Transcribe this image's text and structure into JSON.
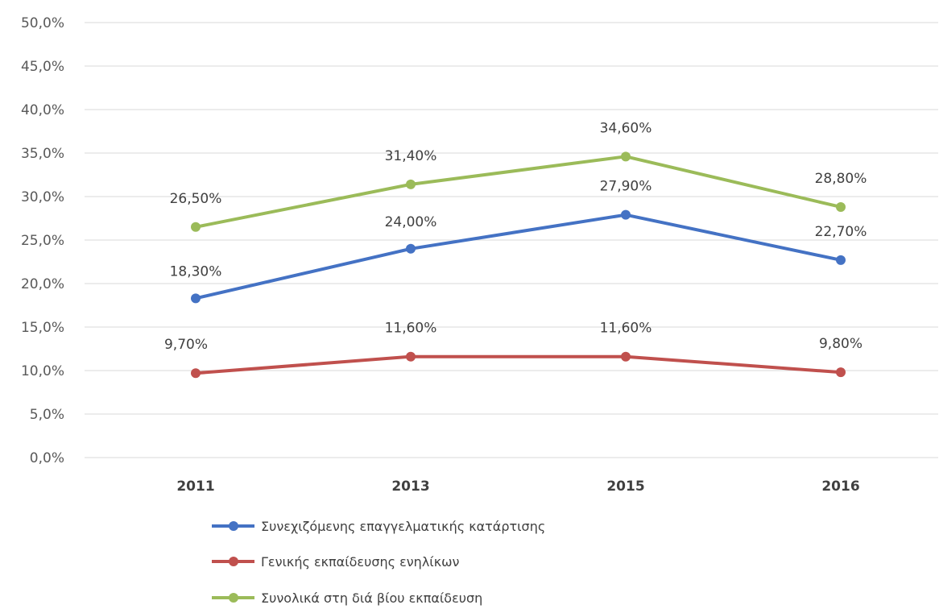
{
  "chart_data": {
    "type": "line",
    "categories": [
      "2011",
      "2013",
      "2015",
      "2016"
    ],
    "ylim": [
      0,
      50
    ],
    "ytick_step": 5,
    "ytick_labels": [
      "0,0%",
      "5,0%",
      "10,0%",
      "15,0%",
      "20,0%",
      "25,0%",
      "30,0%",
      "35,0%",
      "40,0%",
      "45,0%",
      "50,0%"
    ],
    "grid": true,
    "legend_position": "bottom",
    "series": [
      {
        "name": "Συνεχιζόμενης επαγγελματικής κατάρτισης",
        "values": [
          18.3,
          24.0,
          27.9,
          22.7
        ],
        "labels": [
          "18,30%",
          "24,00%",
          "27,90%",
          "22,70%"
        ],
        "color": "#4472c4"
      },
      {
        "name": "Γενικής εκπαίδευσης ενηλίκων",
        "values": [
          9.7,
          11.6,
          11.6,
          9.8
        ],
        "labels": [
          "9,70%",
          "11,60%",
          "11,60%",
          "9,80%"
        ],
        "color": "#c0504d"
      },
      {
        "name": "Συνολικά στη διά βίου εκπαίδευση",
        "values": [
          26.5,
          31.4,
          34.6,
          28.8
        ],
        "labels": [
          "26,50%",
          "31,40%",
          "34,60%",
          "28,80%"
        ],
        "color": "#9bbb59"
      }
    ]
  }
}
